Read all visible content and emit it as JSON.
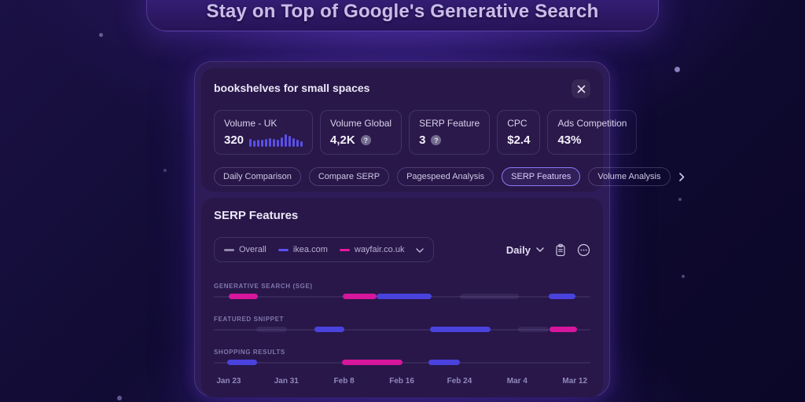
{
  "title": "Stay on Top of Google's Generative Search",
  "card": {
    "query": "bookshelves for small spaces",
    "metrics": [
      {
        "label": "Volume - UK",
        "value": "320",
        "sparkline": [
          10,
          8,
          9,
          9,
          10,
          11,
          10,
          9,
          12,
          16,
          14,
          11,
          9,
          7
        ]
      },
      {
        "label": "Volume Global",
        "value": "4,2K",
        "help": true
      },
      {
        "label": "SERP Feature",
        "value": "3",
        "help": true
      },
      {
        "label": "CPC",
        "value": "$2.4"
      },
      {
        "label": "Ads Competition",
        "value": "43%"
      }
    ],
    "tabs": [
      {
        "label": "Daily Comparison",
        "active": false
      },
      {
        "label": "Compare SERP",
        "active": false
      },
      {
        "label": "Pagespeed Analysis",
        "active": false
      },
      {
        "label": "SERP Features",
        "active": true
      },
      {
        "label": "Volume Analysis",
        "active": false
      }
    ]
  },
  "serp_panel": {
    "heading": "SERP Features",
    "period_label": "Daily",
    "legend": [
      {
        "label": "Overall",
        "color": "#938aac"
      },
      {
        "label": "ikea.com",
        "color": "#5a50f0"
      },
      {
        "label": "wayfair.co.uk",
        "color": "#e5189f"
      }
    ],
    "series_colors": {
      "overall": "rgba(185,170,235,0.10)",
      "ikea.com": "#4a42dd",
      "wayfair.co.uk": "#d6169c"
    },
    "chart_data": {
      "type": "timeline",
      "x_ticks": [
        "Jan 23",
        "Jan 31",
        "Feb 8",
        "Feb 16",
        "Feb 24",
        "Mar 4",
        "Mar 12"
      ],
      "rows": [
        {
          "label": "GENERATIVE SEARCH (SGE)",
          "segments": [
            {
              "series": "wayfair.co.uk",
              "start": 3.9,
              "end": 11.6
            },
            {
              "series": "wayfair.co.uk",
              "start": 34.3,
              "end": 43.2
            },
            {
              "series": "ikea.com",
              "start": 43.2,
              "end": 57.8
            },
            {
              "series": "overall",
              "start": 65.3,
              "end": 80.9
            },
            {
              "series": "ikea.com",
              "start": 89.0,
              "end": 96.0
            }
          ]
        },
        {
          "label": "FEATURED SNIPPET",
          "segments": [
            {
              "series": "overall",
              "start": 11.2,
              "end": 19.5
            },
            {
              "series": "ikea.com",
              "start": 26.8,
              "end": 34.7
            },
            {
              "series": "ikea.com",
              "start": 57.4,
              "end": 73.4
            },
            {
              "series": "overall",
              "start": 80.7,
              "end": 89.0
            },
            {
              "series": "wayfair.co.uk",
              "start": 89.2,
              "end": 96.5
            }
          ]
        },
        {
          "label": "SHOPPING RESULTS",
          "segments": [
            {
              "series": "ikea.com",
              "start": 3.5,
              "end": 11.4
            },
            {
              "series": "wayfair.co.uk",
              "start": 34.1,
              "end": 50.1
            },
            {
              "series": "ikea.com",
              "start": 57.0,
              "end": 65.3
            }
          ]
        }
      ],
      "tick_positions_pct": [
        3.95,
        19.27,
        34.59,
        49.91,
        65.23,
        80.55,
        95.87
      ]
    }
  }
}
